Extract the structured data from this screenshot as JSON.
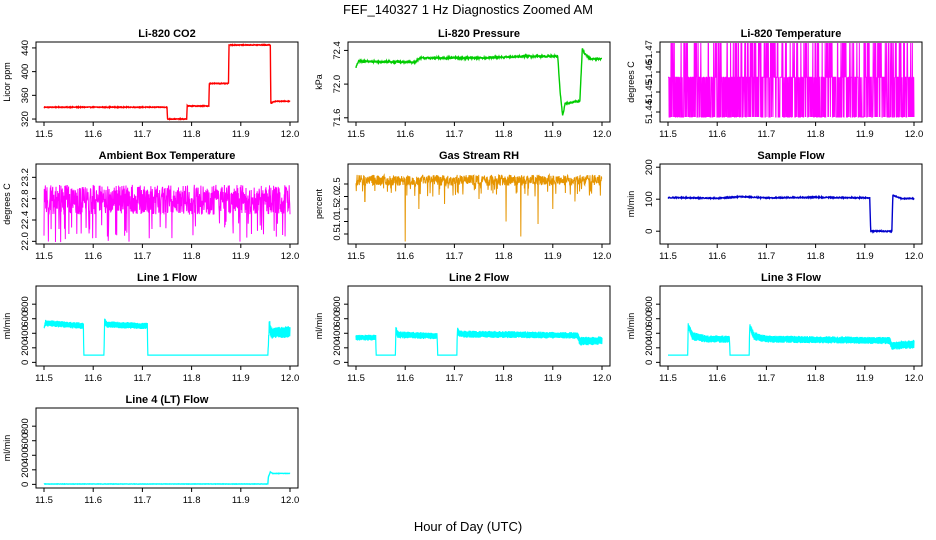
{
  "figure": {
    "title": "FEF_140327  1 Hz Diagnostics Zoomed AM",
    "xlabel": "Hour of Day (UTC)"
  },
  "chart_data": [
    {
      "type": "line",
      "title": "Li-820 CO2",
      "ylabel": "Licor ppm",
      "color": "#ff0000",
      "xlim": [
        11.5,
        12.0
      ],
      "xticks": [
        "11.5",
        "11.6",
        "11.7",
        "11.8",
        "11.9",
        "12.0"
      ],
      "ylim": [
        315,
        450
      ],
      "yticks": [
        "320",
        "360",
        "400",
        "440"
      ],
      "noise": 0.6,
      "x": [
        11.5,
        11.75,
        11.751,
        11.79,
        11.791,
        11.835,
        11.836,
        11.875,
        11.876,
        11.96,
        11.961,
        11.97,
        12.0
      ],
      "y": [
        340,
        340,
        320,
        320,
        342,
        342,
        380,
        380,
        445,
        445,
        347,
        350,
        350
      ]
    },
    {
      "type": "line",
      "title": "Li-820 Pressure",
      "ylabel": "kPa",
      "color": "#00cc00",
      "xlim": [
        11.5,
        12.0
      ],
      "xticks": [
        "11.5",
        "11.6",
        "11.7",
        "11.8",
        "11.9",
        "12.0"
      ],
      "ylim": [
        71.55,
        72.5
      ],
      "yticks": [
        "71.6",
        "72.0",
        "72.4"
      ],
      "noise": 0.01,
      "x": [
        11.5,
        11.505,
        11.62,
        11.63,
        11.75,
        11.85,
        11.91,
        11.915,
        11.92,
        11.925,
        11.955,
        11.96,
        11.965,
        11.975,
        12.0
      ],
      "y": [
        72.2,
        72.27,
        72.26,
        72.31,
        72.31,
        72.33,
        72.33,
        71.9,
        71.62,
        71.77,
        71.8,
        72.42,
        72.36,
        72.3,
        72.3
      ]
    },
    {
      "type": "binary",
      "title": "Li-820 Temperature",
      "ylabel": "degrees C",
      "color": "#ff00ff",
      "xlim": [
        11.5,
        12.0
      ],
      "xticks": [
        "11.5",
        "11.6",
        "11.7",
        "11.8",
        "11.9",
        "12.0"
      ],
      "ylim": [
        51.435,
        51.475
      ],
      "yticks": [
        "51.44",
        "51.45",
        "51.46",
        "51.47"
      ],
      "levels": [
        51.4375,
        51.4574,
        51.4773
      ]
    },
    {
      "type": "noise",
      "title": "Ambient Box Temperature",
      "ylabel": "degrees C",
      "color": "#ff00ff",
      "xlim": [
        11.5,
        12.0
      ],
      "xticks": [
        "11.5",
        "11.6",
        "11.7",
        "11.8",
        "11.9",
        "12.0"
      ],
      "ylim": [
        21.95,
        23.45
      ],
      "yticks": [
        "22.0",
        "22.4",
        "22.8",
        "23.2"
      ],
      "mean": 22.78,
      "spread": 0.28
    },
    {
      "type": "noise",
      "title": "Gas Stream RH",
      "ylabel": "percent",
      "color": "#e69500",
      "xlim": [
        11.5,
        12.0
      ],
      "xticks": [
        "11.5",
        "11.6",
        "11.7",
        "11.8",
        "11.9",
        "12.0"
      ],
      "ylim": [
        0.1,
        3.3
      ],
      "yticks": [
        "0.5",
        "1.0",
        "1.5",
        "2.0",
        "2.5"
      ],
      "mean": 2.65,
      "spread": 0.22,
      "dips": [
        [
          11.518,
          1.8
        ],
        [
          11.6,
          0.2
        ],
        [
          11.628,
          1.5
        ],
        [
          11.68,
          1.7
        ],
        [
          11.75,
          1.9
        ],
        [
          11.805,
          1.0
        ],
        [
          11.835,
          0.4
        ],
        [
          11.87,
          0.9
        ],
        [
          11.9,
          1.5
        ],
        [
          11.945,
          1.8
        ]
      ]
    },
    {
      "type": "line",
      "title": "Sample Flow",
      "ylabel": "ml/min",
      "color": "#0000cc",
      "xlim": [
        11.5,
        12.0
      ],
      "xticks": [
        "11.5",
        "11.6",
        "11.7",
        "11.8",
        "11.9",
        "12.0"
      ],
      "ylim": [
        -40,
        210
      ],
      "yticks": [
        "0",
        "100",
        "200"
      ],
      "noise": 1.5,
      "x": [
        11.5,
        11.6,
        11.65,
        11.7,
        11.8,
        11.91,
        11.912,
        11.955,
        11.957,
        11.963,
        11.975,
        12.0
      ],
      "y": [
        105,
        103,
        108,
        104,
        106,
        104,
        0,
        0,
        113,
        108,
        102,
        102
      ]
    },
    {
      "type": "band",
      "title": "Line 1 Flow",
      "ylabel": "ml/min",
      "color": "#00ffff",
      "xlim": [
        11.5,
        12.0
      ],
      "xticks": [
        "11.5",
        "11.6",
        "11.7",
        "11.8",
        "11.9",
        "12.0"
      ],
      "ylim": [
        -50,
        1050
      ],
      "yticks": [
        "0",
        "200",
        "400",
        "600",
        "800"
      ],
      "x": [
        11.5,
        11.503,
        11.58,
        11.581,
        11.622,
        11.623,
        11.628,
        11.71,
        11.711,
        11.955,
        11.958,
        11.962,
        12.0
      ],
      "y": [
        470,
        540,
        500,
        100,
        100,
        560,
        520,
        500,
        100,
        100,
        520,
        400,
        420
      ],
      "band": [
        0,
        45,
        45,
        0,
        0,
        55,
        45,
        45,
        0,
        0,
        80,
        80,
        80
      ]
    },
    {
      "type": "band",
      "title": "Line 2 Flow",
      "ylabel": "ml/min",
      "color": "#00ffff",
      "xlim": [
        11.5,
        12.0
      ],
      "xticks": [
        "11.5",
        "11.6",
        "11.7",
        "11.8",
        "11.9",
        "12.0"
      ],
      "ylim": [
        -50,
        1050
      ],
      "yticks": [
        "0",
        "200",
        "400",
        "600",
        "800"
      ],
      "x": [
        11.5,
        11.54,
        11.541,
        11.58,
        11.581,
        11.585,
        11.665,
        11.666,
        11.705,
        11.706,
        11.71,
        11.95,
        11.955,
        12.0
      ],
      "y": [
        340,
        340,
        100,
        100,
        450,
        380,
        360,
        100,
        100,
        450,
        390,
        370,
        290,
        300
      ],
      "band": [
        40,
        40,
        0,
        0,
        50,
        50,
        45,
        0,
        0,
        50,
        50,
        45,
        60,
        60
      ]
    },
    {
      "type": "band",
      "title": "Line 3 Flow",
      "ylabel": "ml/min",
      "color": "#00ffff",
      "xlim": [
        11.5,
        12.0
      ],
      "xticks": [
        "11.5",
        "11.6",
        "11.7",
        "11.8",
        "11.9",
        "12.0"
      ],
      "ylim": [
        -50,
        1050
      ],
      "yticks": [
        "0",
        "200",
        "400",
        "600",
        "800"
      ],
      "x": [
        11.5,
        11.54,
        11.541,
        11.55,
        11.58,
        11.625,
        11.626,
        11.665,
        11.666,
        11.675,
        11.7,
        11.95,
        11.955,
        12.0
      ],
      "y": [
        100,
        100,
        500,
        360,
        320,
        320,
        100,
        100,
        500,
        360,
        320,
        300,
        230,
        250
      ],
      "band": [
        0,
        0,
        40,
        60,
        50,
        50,
        0,
        0,
        40,
        60,
        50,
        50,
        60,
        60
      ]
    },
    {
      "type": "line",
      "title": "Line 4 (LT) Flow",
      "ylabel": "ml/min",
      "color": "#00ffff",
      "xlim": [
        11.5,
        12.0
      ],
      "xticks": [
        "11.5",
        "11.6",
        "11.7",
        "11.8",
        "11.9",
        "12.0"
      ],
      "ylim": [
        -50,
        1050
      ],
      "yticks": [
        "0",
        "200",
        "400",
        "600",
        "800"
      ],
      "noise": 2,
      "x": [
        11.5,
        11.955,
        11.956,
        11.96,
        11.965,
        12.0
      ],
      "y": [
        5,
        5,
        100,
        170,
        150,
        150
      ]
    }
  ]
}
